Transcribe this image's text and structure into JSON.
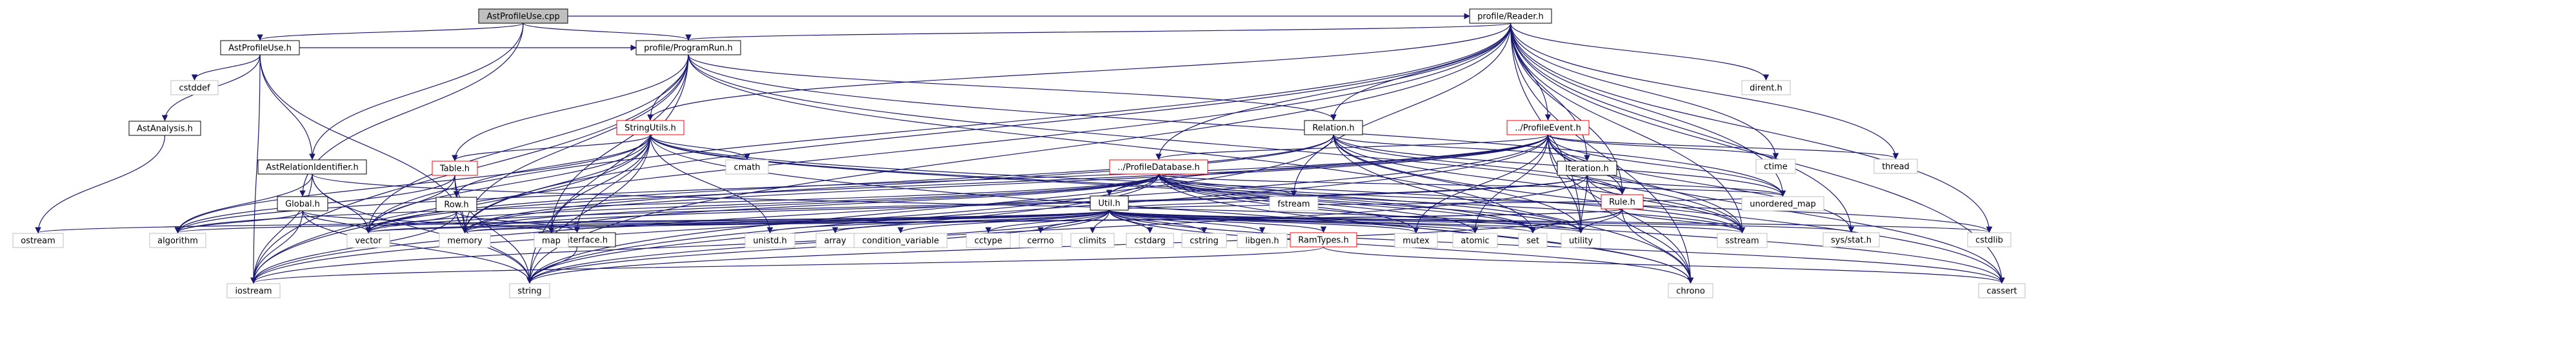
{
  "diagram": {
    "type": "include-dependency-graph",
    "colors": {
      "edge": "#191970",
      "edge_alt": "#8b0000",
      "node_border": "#000000",
      "missing_border": "#bfbfbf",
      "root_fill": "#bfbfbf",
      "red_label": "#ff0000",
      "text": "#000000"
    },
    "nodes": [
      {
        "id": "root",
        "label": "AstProfileUse.cpp",
        "kind": "root"
      },
      {
        "id": "astprofileuse_h",
        "label": "AstProfileUse.h",
        "kind": "file"
      },
      {
        "id": "profilereader_h",
        "label": "profile/Reader.h",
        "kind": "file"
      },
      {
        "id": "programrun_h",
        "label": "profile/ProgramRun.h",
        "kind": "file"
      },
      {
        "id": "stringutils_h",
        "label": "StringUtils.h",
        "kind": "red"
      },
      {
        "id": "relation_h",
        "label": "Relation.h",
        "kind": "file"
      },
      {
        "id": "profileevent_h",
        "label": "../ProfileEvent.h",
        "kind": "red"
      },
      {
        "id": "profiledatabase_h",
        "label": "../ProfileDatabase.h",
        "kind": "red"
      },
      {
        "id": "iteration_h",
        "label": "Iteration.h",
        "kind": "file"
      },
      {
        "id": "rule_h",
        "label": "Rule.h",
        "kind": "red"
      },
      {
        "id": "util_h",
        "label": "Util.h",
        "kind": "file"
      },
      {
        "id": "astanalysis_h",
        "label": "AstAnalysis.h",
        "kind": "file"
      },
      {
        "id": "astrelationidentifier_h",
        "label": "AstRelationIdentifier.h",
        "kind": "file"
      },
      {
        "id": "global_h",
        "label": "Global.h",
        "kind": "file"
      },
      {
        "id": "table_h",
        "label": "Table.h",
        "kind": "red"
      },
      {
        "id": "row_h",
        "label": "Row.h",
        "kind": "file"
      },
      {
        "id": "cellinterface_h",
        "label": "CellInterface.h",
        "kind": "file"
      },
      {
        "id": "ramtypes_h",
        "label": "RamTypes.h",
        "kind": "red"
      },
      {
        "id": "cstddef",
        "label": "cstddef",
        "kind": "system"
      },
      {
        "id": "dirent_h",
        "label": "dirent.h",
        "kind": "system"
      },
      {
        "id": "ctime",
        "label": "ctime",
        "kind": "system"
      },
      {
        "id": "thread",
        "label": "thread",
        "kind": "system"
      },
      {
        "id": "cmath",
        "label": "cmath",
        "kind": "system"
      },
      {
        "id": "fstream",
        "label": "fstream",
        "kind": "system"
      },
      {
        "id": "unordered_map",
        "label": "unordered_map",
        "kind": "system"
      },
      {
        "id": "sys_stat_h",
        "label": "sys/stat.h",
        "kind": "system"
      },
      {
        "id": "cstdlib",
        "label": "cstdlib",
        "kind": "system"
      },
      {
        "id": "ostream",
        "label": "ostream",
        "kind": "system"
      },
      {
        "id": "algorithm",
        "label": "algorithm",
        "kind": "system"
      },
      {
        "id": "vector",
        "label": "vector",
        "kind": "system"
      },
      {
        "id": "memory",
        "label": "memory",
        "kind": "system"
      },
      {
        "id": "map",
        "label": "map",
        "kind": "system"
      },
      {
        "id": "unistd_h",
        "label": "unistd.h",
        "kind": "system"
      },
      {
        "id": "array",
        "label": "array",
        "kind": "system"
      },
      {
        "id": "condition_variable",
        "label": "condition_variable",
        "kind": "system"
      },
      {
        "id": "cctype",
        "label": "cctype",
        "kind": "system"
      },
      {
        "id": "cerrno",
        "label": "cerrno",
        "kind": "system"
      },
      {
        "id": "climits",
        "label": "climits",
        "kind": "system"
      },
      {
        "id": "cstdarg",
        "label": "cstdarg",
        "kind": "system"
      },
      {
        "id": "cstring",
        "label": "cstring",
        "kind": "system"
      },
      {
        "id": "libgen_h",
        "label": "libgen.h",
        "kind": "system"
      },
      {
        "id": "mutex",
        "label": "mutex",
        "kind": "system"
      },
      {
        "id": "atomic",
        "label": "atomic",
        "kind": "system"
      },
      {
        "id": "set",
        "label": "set",
        "kind": "system"
      },
      {
        "id": "utility",
        "label": "utility",
        "kind": "system"
      },
      {
        "id": "sstream",
        "label": "sstream",
        "kind": "system"
      },
      {
        "id": "iostream",
        "label": "iostream",
        "kind": "system"
      },
      {
        "id": "string",
        "label": "string",
        "kind": "system"
      },
      {
        "id": "chrono",
        "label": "chrono",
        "kind": "system"
      },
      {
        "id": "cassert",
        "label": "cassert",
        "kind": "system"
      }
    ],
    "edges": [
      [
        "root",
        "astprofileuse_h"
      ],
      [
        "root",
        "profilereader_h"
      ],
      [
        "root",
        "global_h"
      ],
      [
        "root",
        "astrelationidentifier_h"
      ],
      [
        "root",
        "programrun_h"
      ],
      [
        "astprofileuse_h",
        "cstddef"
      ],
      [
        "astprofileuse_h",
        "astanalysis_h"
      ],
      [
        "astprofileuse_h",
        "astrelationidentifier_h"
      ],
      [
        "astprofileuse_h",
        "programrun_h"
      ],
      [
        "astprofileuse_h",
        "iostream"
      ],
      [
        "astprofileuse_h",
        "memory"
      ],
      [
        "astanalysis_h",
        "ostream"
      ],
      [
        "astrelationidentifier_h",
        "algorithm"
      ],
      [
        "astrelationidentifier_h",
        "vector"
      ],
      [
        "astrelationidentifier_h",
        "string"
      ],
      [
        "astrelationidentifier_h",
        "iostream"
      ],
      [
        "astrelationidentifier_h",
        "utility"
      ],
      [
        "global_h",
        "map"
      ],
      [
        "global_h",
        "vector"
      ],
      [
        "global_h",
        "string"
      ],
      [
        "global_h",
        "iostream"
      ],
      [
        "global_h",
        "algorithm"
      ],
      [
        "profilereader_h",
        "programrun_h"
      ],
      [
        "profilereader_h",
        "stringutils_h"
      ],
      [
        "profilereader_h",
        "relation_h"
      ],
      [
        "profilereader_h",
        "profileevent_h"
      ],
      [
        "profilereader_h",
        "profiledatabase_h"
      ],
      [
        "profilereader_h",
        "iteration_h"
      ],
      [
        "profilereader_h",
        "rule_h"
      ],
      [
        "profilereader_h",
        "dirent_h"
      ],
      [
        "profilereader_h",
        "ctime"
      ],
      [
        "profilereader_h",
        "thread"
      ],
      [
        "profilereader_h",
        "fstream"
      ],
      [
        "profilereader_h",
        "unordered_map"
      ],
      [
        "profilereader_h",
        "sys_stat_h"
      ],
      [
        "profilereader_h",
        "cstdlib"
      ],
      [
        "profilereader_h",
        "sstream"
      ],
      [
        "profilereader_h",
        "utility"
      ],
      [
        "profilereader_h",
        "string"
      ],
      [
        "profilereader_h",
        "chrono"
      ],
      [
        "profilereader_h",
        "cassert"
      ],
      [
        "profilereader_h",
        "iostream"
      ],
      [
        "profilereader_h",
        "vector"
      ],
      [
        "profilereader_h",
        "memory"
      ],
      [
        "programrun_h",
        "stringutils_h"
      ],
      [
        "programrun_h",
        "relation_h"
      ],
      [
        "programrun_h",
        "table_h"
      ],
      [
        "programrun_h",
        "unordered_map"
      ],
      [
        "programrun_h",
        "iostream"
      ],
      [
        "programrun_h",
        "string"
      ],
      [
        "programrun_h",
        "vector"
      ],
      [
        "programrun_h",
        "memory"
      ],
      [
        "programrun_h",
        "sstream"
      ],
      [
        "programrun_h",
        "set"
      ],
      [
        "programrun_h",
        "map"
      ],
      [
        "stringutils_h",
        "table_h"
      ],
      [
        "stringutils_h",
        "row_h"
      ],
      [
        "stringutils_h",
        "cmath"
      ],
      [
        "stringutils_h",
        "algorithm"
      ],
      [
        "stringutils_h",
        "vector"
      ],
      [
        "stringutils_h",
        "memory"
      ],
      [
        "stringutils_h",
        "string"
      ],
      [
        "stringutils_h",
        "sstream"
      ],
      [
        "stringutils_h",
        "iostream"
      ],
      [
        "stringutils_h",
        "map"
      ],
      [
        "stringutils_h",
        "unistd_h"
      ],
      [
        "stringutils_h",
        "set"
      ],
      [
        "stringutils_h",
        "utility"
      ],
      [
        "stringutils_h",
        "chrono"
      ],
      [
        "stringutils_h",
        "cellinterface_h"
      ],
      [
        "relation_h",
        "iteration_h"
      ],
      [
        "relation_h",
        "rule_h"
      ],
      [
        "relation_h",
        "unordered_map"
      ],
      [
        "relation_h",
        "string"
      ],
      [
        "relation_h",
        "vector"
      ],
      [
        "relation_h",
        "chrono"
      ],
      [
        "relation_h",
        "sstream"
      ],
      [
        "relation_h",
        "memory"
      ],
      [
        "relation_h",
        "utility"
      ],
      [
        "relation_h",
        "cassert"
      ],
      [
        "profileevent_h",
        "profiledatabase_h"
      ],
      [
        "profileevent_h",
        "util_h"
      ],
      [
        "profileevent_h",
        "ctime"
      ],
      [
        "profileevent_h",
        "thread"
      ],
      [
        "profileevent_h",
        "mutex"
      ],
      [
        "profileevent_h",
        "atomic"
      ],
      [
        "profileevent_h",
        "unordered_map"
      ],
      [
        "profileevent_h",
        "sys_stat_h"
      ],
      [
        "profileevent_h",
        "string"
      ],
      [
        "profileevent_h",
        "chrono"
      ],
      [
        "profileevent_h",
        "cassert"
      ],
      [
        "profileevent_h",
        "sstream"
      ],
      [
        "profileevent_h",
        "memory"
      ],
      [
        "profileevent_h",
        "iostream"
      ],
      [
        "profileevent_h",
        "algorithm"
      ],
      [
        "profileevent_h",
        "vector"
      ],
      [
        "profileevent_h",
        "utility"
      ],
      [
        "profileevent_h",
        "rule_h"
      ],
      [
        "profiledatabase_h",
        "util_h"
      ],
      [
        "profiledatabase_h",
        "fstream"
      ],
      [
        "profiledatabase_h",
        "unordered_map"
      ],
      [
        "profiledatabase_h",
        "mutex"
      ],
      [
        "profiledatabase_h",
        "atomic"
      ],
      [
        "profiledatabase_h",
        "set"
      ],
      [
        "profiledatabase_h",
        "utility"
      ],
      [
        "profiledatabase_h",
        "sstream"
      ],
      [
        "profiledatabase_h",
        "string"
      ],
      [
        "profiledatabase_h",
        "chrono"
      ],
      [
        "profiledatabase_h",
        "cassert"
      ],
      [
        "profiledatabase_h",
        "memory"
      ],
      [
        "profiledatabase_h",
        "map"
      ],
      [
        "profiledatabase_h",
        "vector"
      ],
      [
        "profiledatabase_h",
        "iostream"
      ],
      [
        "profiledatabase_h",
        "algorithm"
      ],
      [
        "profiledatabase_h",
        "cstdlib"
      ],
      [
        "iteration_h",
        "rule_h"
      ],
      [
        "iteration_h",
        "unordered_map"
      ],
      [
        "iteration_h",
        "string"
      ],
      [
        "iteration_h",
        "vector"
      ],
      [
        "iteration_h",
        "chrono"
      ],
      [
        "iteration_h",
        "sstream"
      ],
      [
        "iteration_h",
        "memory"
      ],
      [
        "iteration_h",
        "utility"
      ],
      [
        "rule_h",
        "set"
      ],
      [
        "rule_h",
        "utility"
      ],
      [
        "rule_h",
        "sstream"
      ],
      [
        "rule_h",
        "string"
      ],
      [
        "rule_h",
        "chrono"
      ],
      [
        "rule_h",
        "memory"
      ],
      [
        "rule_h",
        "vector"
      ],
      [
        "util_h",
        "ramtypes_h"
      ],
      [
        "util_h",
        "algorithm"
      ],
      [
        "util_h",
        "vector"
      ],
      [
        "util_h",
        "memory"
      ],
      [
        "util_h",
        "map"
      ],
      [
        "util_h",
        "unistd_h"
      ],
      [
        "util_h",
        "array"
      ],
      [
        "util_h",
        "condition_variable"
      ],
      [
        "util_h",
        "cctype"
      ],
      [
        "util_h",
        "cerrno"
      ],
      [
        "util_h",
        "climits"
      ],
      [
        "util_h",
        "cstdarg"
      ],
      [
        "util_h",
        "cstring"
      ],
      [
        "util_h",
        "libgen_h"
      ],
      [
        "util_h",
        "mutex"
      ],
      [
        "util_h",
        "atomic"
      ],
      [
        "util_h",
        "set"
      ],
      [
        "util_h",
        "utility"
      ],
      [
        "util_h",
        "sys_stat_h"
      ],
      [
        "util_h",
        "sstream"
      ],
      [
        "util_h",
        "cstdlib"
      ],
      [
        "util_h",
        "chrono"
      ],
      [
        "util_h",
        "cassert"
      ],
      [
        "util_h",
        "iostream"
      ],
      [
        "util_h",
        "string"
      ],
      [
        "util_h",
        "ostream"
      ],
      [
        "util_h",
        "fstream"
      ],
      [
        "util_h",
        "unordered_map"
      ],
      [
        "table_h",
        "row_h"
      ],
      [
        "table_h",
        "vector"
      ],
      [
        "table_h",
        "memory"
      ],
      [
        "table_h",
        "string"
      ],
      [
        "table_h",
        "algorithm"
      ],
      [
        "row_h",
        "cellinterface_h"
      ],
      [
        "row_h",
        "vector"
      ],
      [
        "row_h",
        "memory"
      ],
      [
        "row_h",
        "string"
      ],
      [
        "row_h",
        "iostream"
      ],
      [
        "cellinterface_h",
        "string"
      ],
      [
        "ramtypes_h",
        "iostream"
      ],
      [
        "ramtypes_h",
        "cassert"
      ]
    ]
  }
}
